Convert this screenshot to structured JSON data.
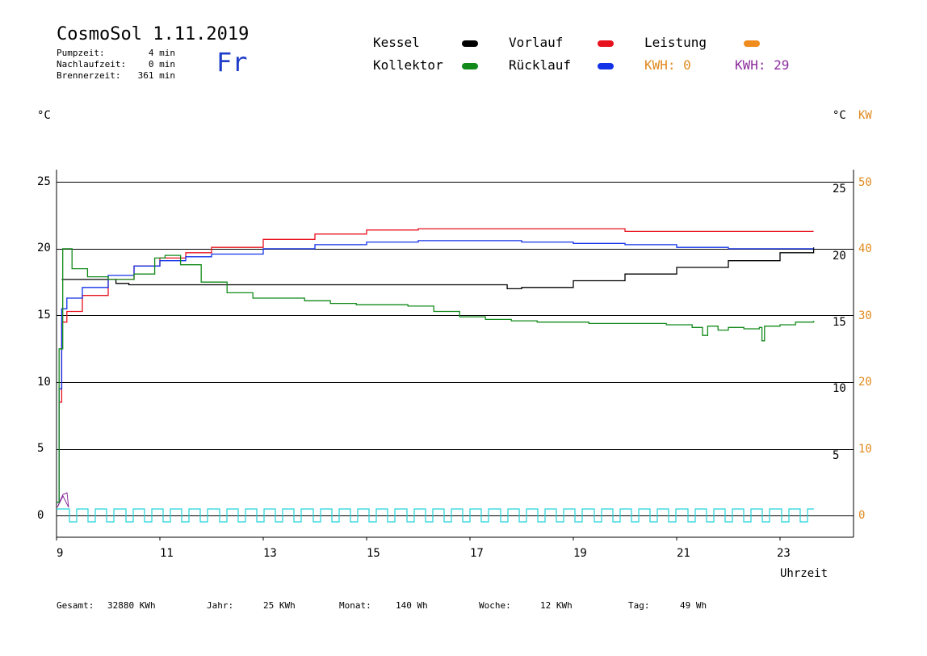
{
  "header": {
    "title": "CosmoSol 1.11.2019",
    "day": "Fr",
    "stats": [
      {
        "label": "Pumpzeit:",
        "value": "4 min"
      },
      {
        "label": "Nachlaufzeit:",
        "value": "0 min"
      },
      {
        "label": "Brennerzeit:",
        "value": "361 min"
      }
    ]
  },
  "legend": {
    "kessel": {
      "label": "Kessel",
      "color": "#000000"
    },
    "vorlauf": {
      "label": "Vorlauf",
      "color": "#e8121e"
    },
    "leistung": {
      "label": "Leistung",
      "color": "#f08c1e"
    },
    "kollektor": {
      "label": "Kollektor",
      "color": "#128a1a"
    },
    "ruecklauf": {
      "label": "Rücklauf",
      "color": "#1232e8"
    },
    "kwh_orange": "KWH: 0",
    "kwh_purple": "KWH: 29"
  },
  "axes": {
    "left_unit": "°C",
    "right_unit": "°C",
    "right_unit2": "KW",
    "x_label": "Uhrzeit",
    "left_ticks": [
      "25",
      "20",
      "15",
      "10",
      "5",
      "0"
    ],
    "right_temp_ticks": [
      "25",
      "20",
      "15",
      "10",
      "5"
    ],
    "right_kw_ticks": [
      "50",
      "40",
      "30",
      "20",
      "10",
      "0"
    ],
    "x_ticks": [
      "9",
      "11",
      "13",
      "15",
      "17",
      "19",
      "21",
      "23"
    ]
  },
  "footer": {
    "gesamt_label": "Gesamt:",
    "gesamt_value": "32880 KWh",
    "jahr_label": "Jahr:",
    "jahr_value": "25 KWh",
    "monat_label": "Monat:",
    "monat_value": "140 Wh",
    "woche_label": "Woche:",
    "woche_value": "12 KWh",
    "tag_label": "Tag:",
    "tag_value": "49 Wh"
  },
  "chart_data": {
    "type": "line",
    "xlabel": "Uhrzeit",
    "ylabel": "°C",
    "xlim": [
      9,
      24.3
    ],
    "ylim": [
      -2,
      25.5
    ],
    "series": [
      {
        "name": "Kessel",
        "color": "#000000",
        "x": [
          9.1,
          9.6,
          10.0,
          10.15,
          10.4,
          12.0,
          14.0,
          16.0,
          17.7,
          17.72,
          18.0,
          19.0,
          20.0,
          21.0,
          22.0,
          23.0,
          23.65
        ],
        "y": [
          17.2,
          17.2,
          17.2,
          16.9,
          16.8,
          16.8,
          16.8,
          16.8,
          16.8,
          16.5,
          16.6,
          17.1,
          17.6,
          18.1,
          18.6,
          19.2,
          19.6
        ]
      },
      {
        "name": "Vorlauf",
        "color": "#e8121e",
        "x": [
          9.0,
          9.05,
          9.1,
          9.2,
          9.5,
          10.0,
          10.5,
          11.0,
          11.5,
          12.0,
          13.0,
          14.0,
          15.0,
          16.0,
          17.0,
          18.0,
          19.0,
          20.0,
          21.0,
          22.0,
          23.0,
          23.65
        ],
        "y": [
          0.5,
          8.0,
          14.0,
          14.8,
          16.0,
          17.2,
          18.2,
          18.8,
          19.2,
          19.6,
          20.2,
          20.6,
          20.9,
          21.0,
          21.0,
          21.0,
          21.0,
          20.8,
          20.8,
          20.8,
          20.8,
          20.8
        ]
      },
      {
        "name": "Rücklauf",
        "color": "#1232e8",
        "x": [
          9.0,
          9.05,
          9.1,
          9.2,
          9.5,
          10.0,
          10.5,
          11.0,
          11.5,
          12.0,
          13.0,
          14.0,
          15.0,
          16.0,
          17.0,
          18.0,
          19.0,
          20.0,
          21.0,
          22.0,
          23.0,
          23.65
        ],
        "y": [
          0.5,
          9.0,
          15.0,
          15.8,
          16.6,
          17.5,
          18.2,
          18.6,
          18.9,
          19.1,
          19.5,
          19.8,
          20.0,
          20.1,
          20.1,
          20.0,
          19.9,
          19.8,
          19.6,
          19.5,
          19.5,
          19.5
        ]
      },
      {
        "name": "Kollektor",
        "color": "#128a1a",
        "x": [
          9.0,
          9.05,
          9.12,
          9.3,
          9.6,
          10.0,
          10.5,
          10.9,
          11.1,
          11.4,
          11.8,
          12.3,
          12.8,
          13.3,
          13.8,
          14.3,
          14.8,
          15.3,
          15.8,
          16.3,
          16.8,
          17.3,
          17.8,
          18.3,
          18.8,
          19.3,
          19.8,
          20.3,
          20.8,
          21.3,
          21.5,
          21.6,
          21.8,
          22.0,
          22.3,
          22.6,
          22.65,
          22.7,
          23.0,
          23.3,
          23.65
        ],
        "y": [
          0.5,
          12.0,
          19.5,
          18.0,
          17.4,
          17.2,
          17.6,
          18.8,
          19.0,
          18.3,
          17.0,
          16.2,
          15.8,
          15.8,
          15.6,
          15.4,
          15.3,
          15.3,
          15.2,
          14.8,
          14.4,
          14.2,
          14.1,
          14.0,
          14.0,
          13.9,
          13.9,
          13.9,
          13.8,
          13.6,
          13.0,
          13.7,
          13.4,
          13.6,
          13.5,
          13.6,
          12.6,
          13.7,
          13.8,
          14.0,
          14.1
        ]
      }
    ]
  }
}
